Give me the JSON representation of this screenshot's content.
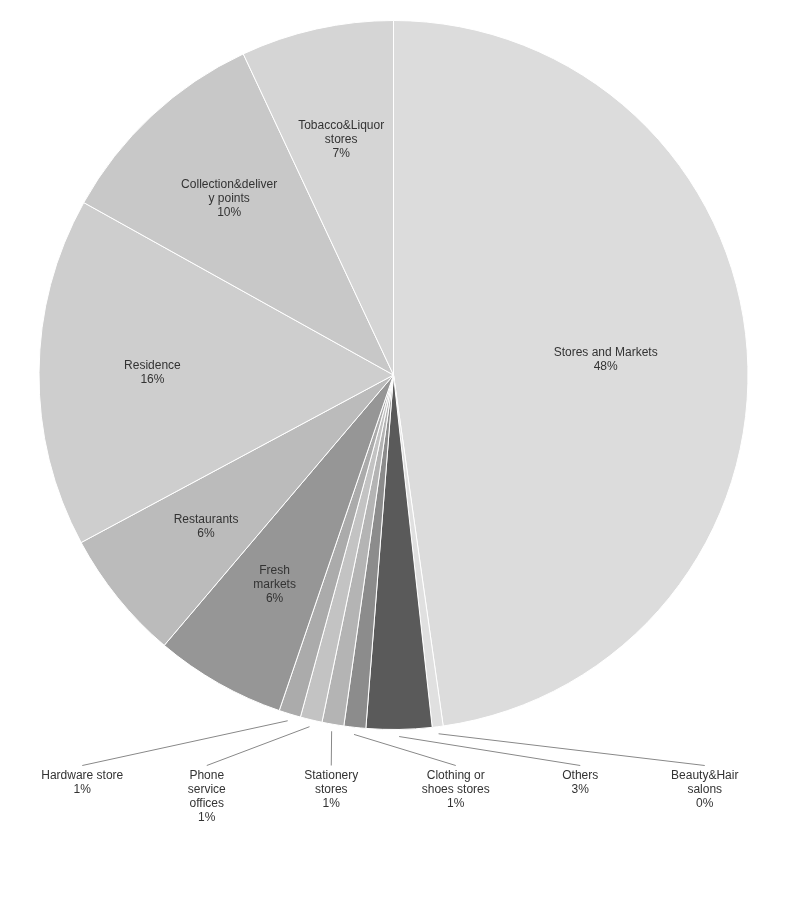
{
  "chart_data": {
    "type": "pie",
    "categories": [
      "Stores and Markets\n48%",
      "Beauty&Hair\nsalons\n0%",
      "Others\n3%",
      "Clothing or\nshoes stores\n1%",
      "Stationery\nstores\n1%",
      "Phone\nservice\noffices\n1%",
      "Hardware store\n1%",
      "Fresh\nmarkets\n6%",
      "Restaurants\n6%",
      "Residence\n16%",
      "Collection&deliver\ny points\n10%",
      "Tobacco&Liquor\nstores\n7%"
    ],
    "values": [
      48,
      0.5,
      3,
      1,
      1,
      1,
      1,
      6,
      6,
      16,
      10,
      7
    ],
    "colors": [
      "#DCDCDC",
      "#E0E0E0",
      "#5A5A5A",
      "#8C8C8C",
      "#B4B4B4",
      "#C3C3C3",
      "#ABABAB",
      "#969696",
      "#BBBBBB",
      "#CECECE",
      "#C8C8C8",
      "#D5D5D5"
    ]
  }
}
